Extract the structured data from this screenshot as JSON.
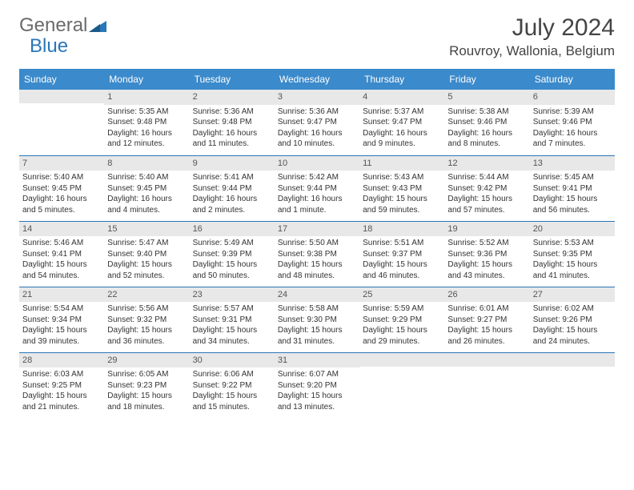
{
  "brand": {
    "general": "General",
    "blue": "Blue"
  },
  "colors": {
    "accent": "#3b8acb",
    "border": "#2a77b8",
    "daynum_bg": "#e8e8e8",
    "text": "#333333",
    "logo_gray": "#6a6a6a"
  },
  "title": "July 2024",
  "location": "Rouvroy, Wallonia, Belgium",
  "weekdays": [
    "Sunday",
    "Monday",
    "Tuesday",
    "Wednesday",
    "Thursday",
    "Friday",
    "Saturday"
  ],
  "weeks": [
    [
      {
        "day": "",
        "lines": []
      },
      {
        "day": "1",
        "lines": [
          "Sunrise: 5:35 AM",
          "Sunset: 9:48 PM",
          "Daylight: 16 hours and 12 minutes."
        ]
      },
      {
        "day": "2",
        "lines": [
          "Sunrise: 5:36 AM",
          "Sunset: 9:48 PM",
          "Daylight: 16 hours and 11 minutes."
        ]
      },
      {
        "day": "3",
        "lines": [
          "Sunrise: 5:36 AM",
          "Sunset: 9:47 PM",
          "Daylight: 16 hours and 10 minutes."
        ]
      },
      {
        "day": "4",
        "lines": [
          "Sunrise: 5:37 AM",
          "Sunset: 9:47 PM",
          "Daylight: 16 hours and 9 minutes."
        ]
      },
      {
        "day": "5",
        "lines": [
          "Sunrise: 5:38 AM",
          "Sunset: 9:46 PM",
          "Daylight: 16 hours and 8 minutes."
        ]
      },
      {
        "day": "6",
        "lines": [
          "Sunrise: 5:39 AM",
          "Sunset: 9:46 PM",
          "Daylight: 16 hours and 7 minutes."
        ]
      }
    ],
    [
      {
        "day": "7",
        "lines": [
          "Sunrise: 5:40 AM",
          "Sunset: 9:45 PM",
          "Daylight: 16 hours and 5 minutes."
        ]
      },
      {
        "day": "8",
        "lines": [
          "Sunrise: 5:40 AM",
          "Sunset: 9:45 PM",
          "Daylight: 16 hours and 4 minutes."
        ]
      },
      {
        "day": "9",
        "lines": [
          "Sunrise: 5:41 AM",
          "Sunset: 9:44 PM",
          "Daylight: 16 hours and 2 minutes."
        ]
      },
      {
        "day": "10",
        "lines": [
          "Sunrise: 5:42 AM",
          "Sunset: 9:44 PM",
          "Daylight: 16 hours and 1 minute."
        ]
      },
      {
        "day": "11",
        "lines": [
          "Sunrise: 5:43 AM",
          "Sunset: 9:43 PM",
          "Daylight: 15 hours and 59 minutes."
        ]
      },
      {
        "day": "12",
        "lines": [
          "Sunrise: 5:44 AM",
          "Sunset: 9:42 PM",
          "Daylight: 15 hours and 57 minutes."
        ]
      },
      {
        "day": "13",
        "lines": [
          "Sunrise: 5:45 AM",
          "Sunset: 9:41 PM",
          "Daylight: 15 hours and 56 minutes."
        ]
      }
    ],
    [
      {
        "day": "14",
        "lines": [
          "Sunrise: 5:46 AM",
          "Sunset: 9:41 PM",
          "Daylight: 15 hours and 54 minutes."
        ]
      },
      {
        "day": "15",
        "lines": [
          "Sunrise: 5:47 AM",
          "Sunset: 9:40 PM",
          "Daylight: 15 hours and 52 minutes."
        ]
      },
      {
        "day": "16",
        "lines": [
          "Sunrise: 5:49 AM",
          "Sunset: 9:39 PM",
          "Daylight: 15 hours and 50 minutes."
        ]
      },
      {
        "day": "17",
        "lines": [
          "Sunrise: 5:50 AM",
          "Sunset: 9:38 PM",
          "Daylight: 15 hours and 48 minutes."
        ]
      },
      {
        "day": "18",
        "lines": [
          "Sunrise: 5:51 AM",
          "Sunset: 9:37 PM",
          "Daylight: 15 hours and 46 minutes."
        ]
      },
      {
        "day": "19",
        "lines": [
          "Sunrise: 5:52 AM",
          "Sunset: 9:36 PM",
          "Daylight: 15 hours and 43 minutes."
        ]
      },
      {
        "day": "20",
        "lines": [
          "Sunrise: 5:53 AM",
          "Sunset: 9:35 PM",
          "Daylight: 15 hours and 41 minutes."
        ]
      }
    ],
    [
      {
        "day": "21",
        "lines": [
          "Sunrise: 5:54 AM",
          "Sunset: 9:34 PM",
          "Daylight: 15 hours and 39 minutes."
        ]
      },
      {
        "day": "22",
        "lines": [
          "Sunrise: 5:56 AM",
          "Sunset: 9:32 PM",
          "Daylight: 15 hours and 36 minutes."
        ]
      },
      {
        "day": "23",
        "lines": [
          "Sunrise: 5:57 AM",
          "Sunset: 9:31 PM",
          "Daylight: 15 hours and 34 minutes."
        ]
      },
      {
        "day": "24",
        "lines": [
          "Sunrise: 5:58 AM",
          "Sunset: 9:30 PM",
          "Daylight: 15 hours and 31 minutes."
        ]
      },
      {
        "day": "25",
        "lines": [
          "Sunrise: 5:59 AM",
          "Sunset: 9:29 PM",
          "Daylight: 15 hours and 29 minutes."
        ]
      },
      {
        "day": "26",
        "lines": [
          "Sunrise: 6:01 AM",
          "Sunset: 9:27 PM",
          "Daylight: 15 hours and 26 minutes."
        ]
      },
      {
        "day": "27",
        "lines": [
          "Sunrise: 6:02 AM",
          "Sunset: 9:26 PM",
          "Daylight: 15 hours and 24 minutes."
        ]
      }
    ],
    [
      {
        "day": "28",
        "lines": [
          "Sunrise: 6:03 AM",
          "Sunset: 9:25 PM",
          "Daylight: 15 hours and 21 minutes."
        ]
      },
      {
        "day": "29",
        "lines": [
          "Sunrise: 6:05 AM",
          "Sunset: 9:23 PM",
          "Daylight: 15 hours and 18 minutes."
        ]
      },
      {
        "day": "30",
        "lines": [
          "Sunrise: 6:06 AM",
          "Sunset: 9:22 PM",
          "Daylight: 15 hours and 15 minutes."
        ]
      },
      {
        "day": "31",
        "lines": [
          "Sunrise: 6:07 AM",
          "Sunset: 9:20 PM",
          "Daylight: 15 hours and 13 minutes."
        ]
      },
      {
        "day": "",
        "lines": []
      },
      {
        "day": "",
        "lines": []
      },
      {
        "day": "",
        "lines": []
      }
    ]
  ]
}
